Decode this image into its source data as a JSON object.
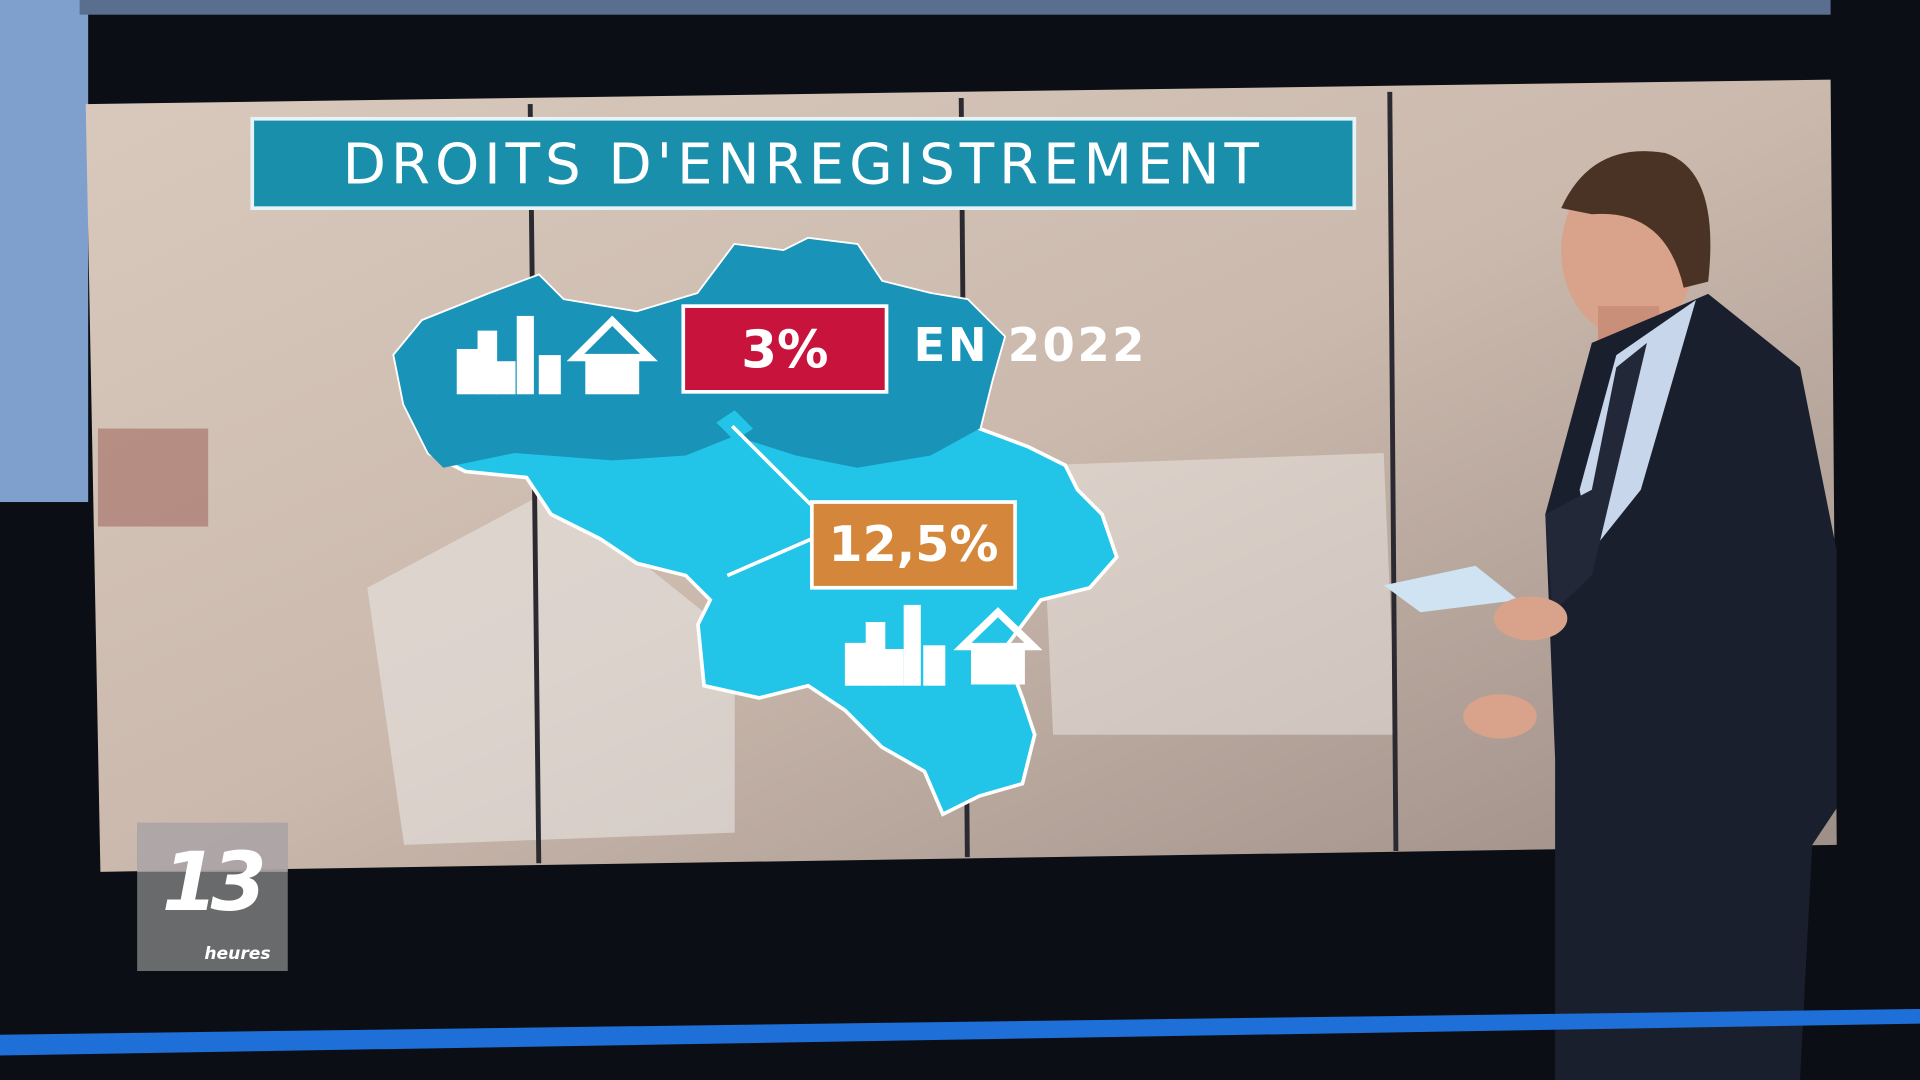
{
  "graphic": {
    "title": "DROITS D'ENREGISTREMENT",
    "flanders_rate": "3%",
    "flanders_year": "EN 2022",
    "wallonia_rate": "12,5%",
    "colors": {
      "title_bar": "#1a8fac",
      "flanders": "#1a93b8",
      "wallonia": "#22c4e8",
      "flanders_badge": "#c8143c",
      "wallonia_badge": "#d4873a"
    }
  },
  "logo": {
    "number": "13",
    "subtitle": "heures"
  }
}
